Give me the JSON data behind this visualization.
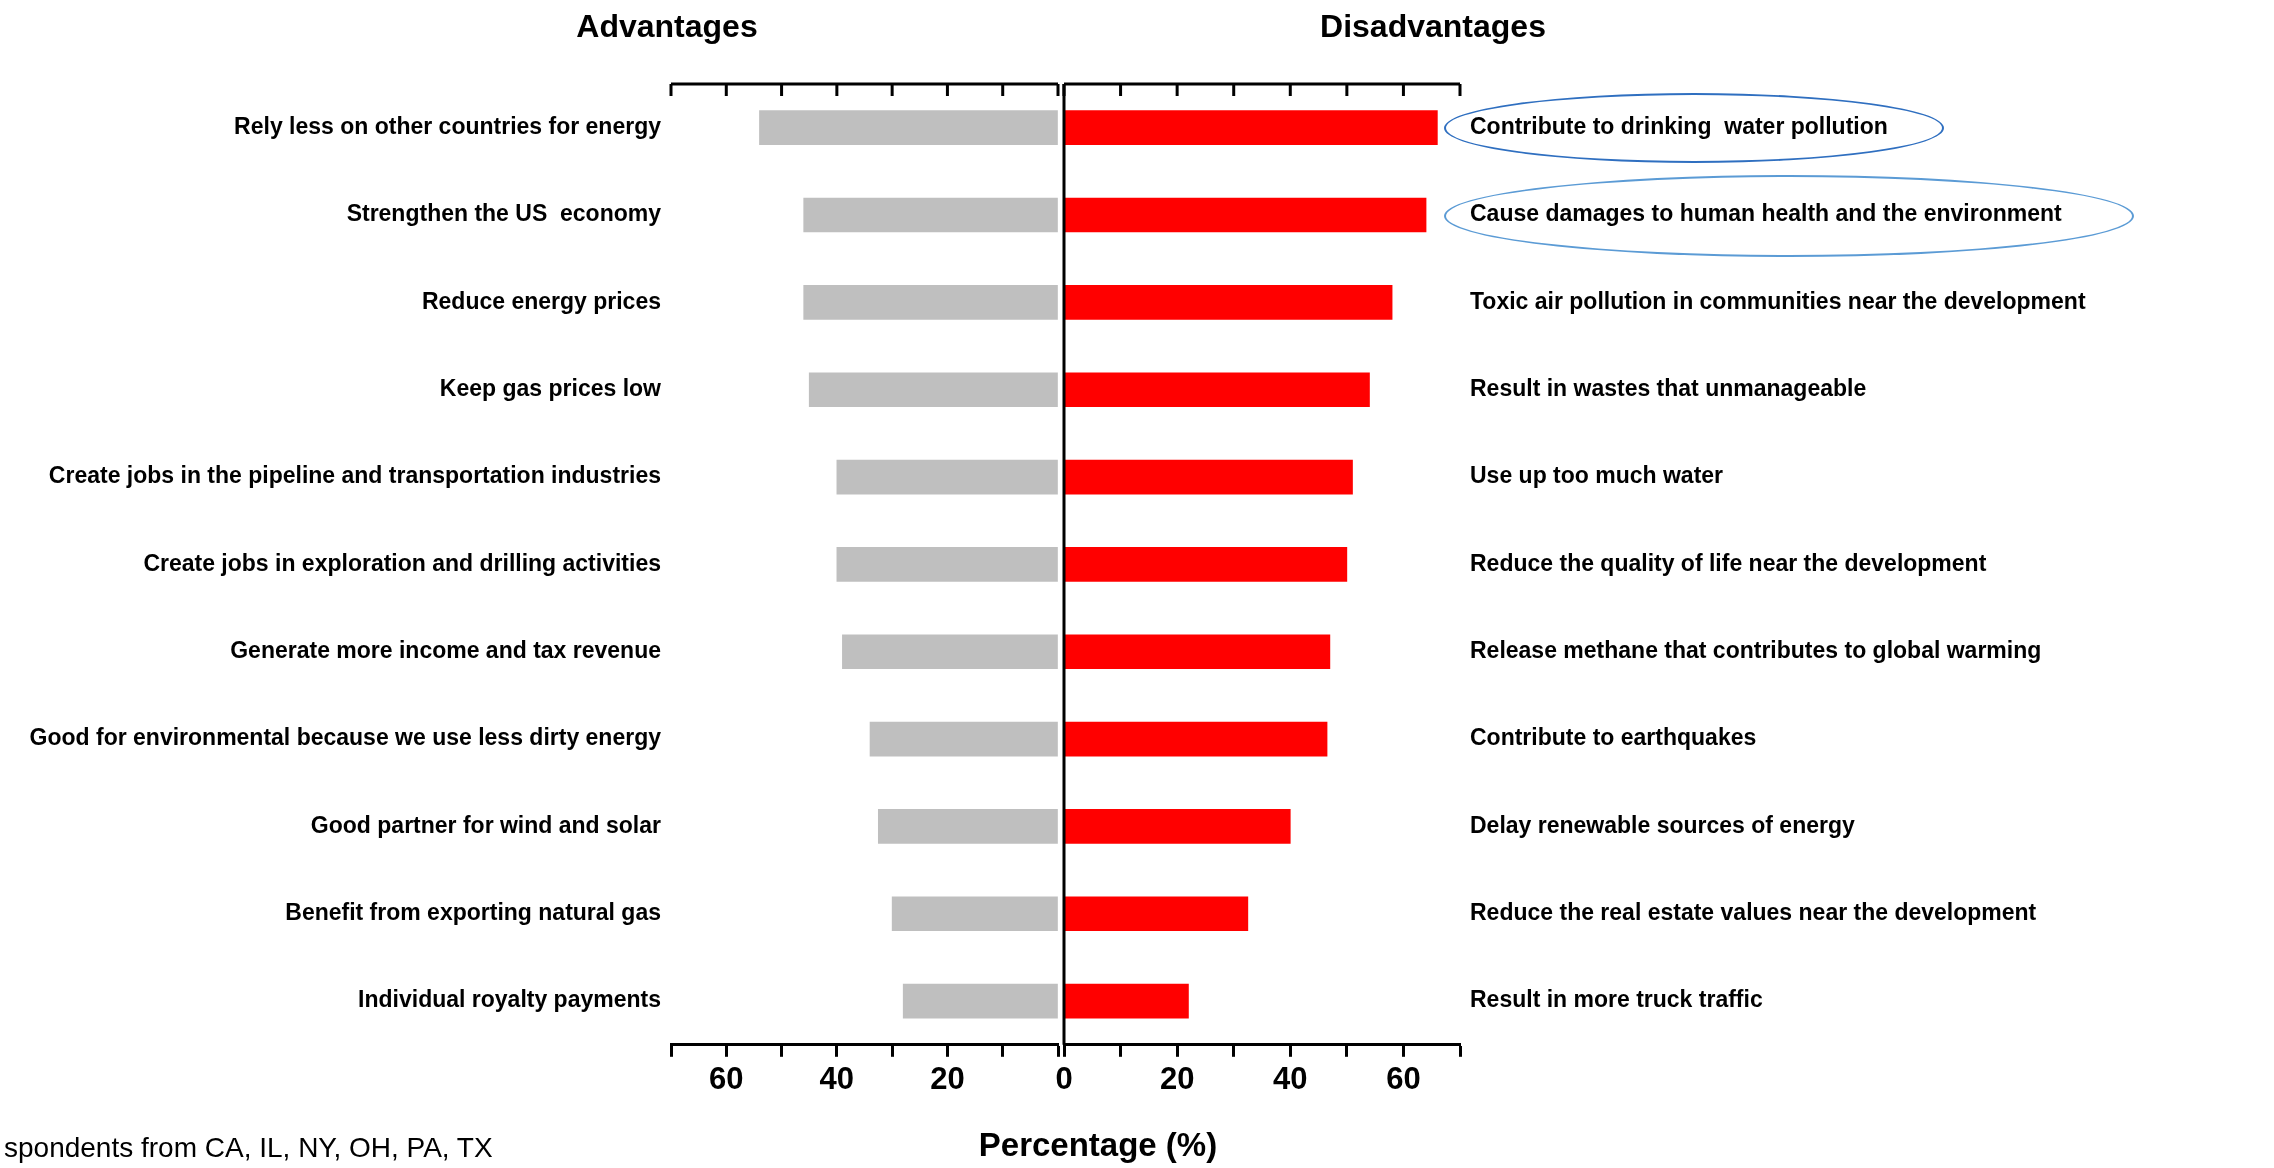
{
  "chart_data": [
    {
      "type": "bar",
      "orientation": "horizontal",
      "title": "Advantages",
      "categories": [
        "Rely less on other countries for energy",
        "Strengthen the US  economy",
        "Reduce energy prices",
        "Keep gas prices low",
        "Create jobs in the pipeline and transportation industries",
        "Create jobs in exploration and drilling activities",
        "Generate more income and tax revenue",
        "Good for environmental because we use less dirty energy",
        "Good partner for wind and solar",
        "Benefit from exporting natural gas",
        "Individual royalty payments"
      ],
      "values": [
        54,
        46,
        46,
        45,
        40,
        40,
        39,
        34,
        32.5,
        30,
        28
      ],
      "color": "#bfbfbf",
      "xlim": [
        70,
        0
      ],
      "xticks": [
        {
          "value": 70,
          "label": null
        },
        60,
        {
          "value": 50,
          "label": null
        },
        40,
        {
          "value": 30,
          "label": null
        },
        20,
        {
          "value": 10,
          "label": null
        },
        {
          "value": 0,
          "label": null
        }
      ],
      "grid": false,
      "legend": false,
      "annotations": [
        "spondents from CA, IL, NY, OH, PA, TX"
      ]
    },
    {
      "type": "bar",
      "orientation": "horizontal",
      "title": "Disadvantages",
      "xlabel": "Percentage (%)",
      "categories": [
        "Contribute to drinking  water pollution",
        "Cause damages to human health and the environment",
        "Toxic air pollution in communities near the development",
        "Result in wastes that unmanageable",
        "Use up too much water",
        "Reduce the quality of life near the development",
        "Release methane that contributes to global warming",
        "Contribute to earthquakes",
        "Delay renewable sources of energy",
        "Reduce the real estate values near the development",
        "Result in more truck traffic"
      ],
      "values": [
        66,
        64,
        58,
        54,
        51,
        50,
        47,
        46.5,
        40,
        32.5,
        22
      ],
      "color": "#ff0000",
      "xlim": [
        0,
        70
      ],
      "xticks": [
        0,
        {
          "value": 10,
          "label": null
        },
        20,
        {
          "value": 30,
          "label": null
        },
        40,
        {
          "value": 50,
          "label": null
        },
        60,
        {
          "value": 70,
          "label": null
        }
      ],
      "grid": false,
      "legend": false
    }
  ]
}
